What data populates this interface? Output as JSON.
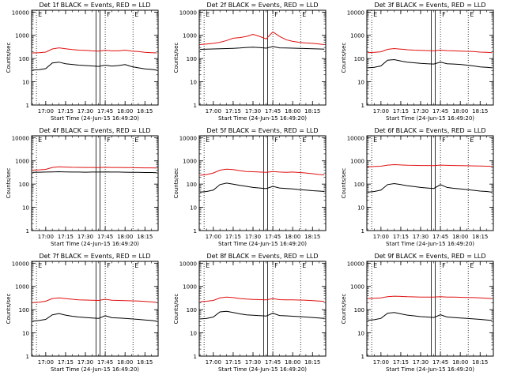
{
  "figure": {
    "ylabel": "Counts/sec",
    "xlabel": "Start Time (24-Jun-15 16:49:20)",
    "x_ticks": [
      "17:00",
      "17:15",
      "17:30",
      "17:45",
      "18:00",
      "18:15"
    ],
    "y_ticks": [
      "1",
      "10",
      "100",
      "1000",
      "10000"
    ],
    "markers": [
      "E",
      "F",
      "E"
    ],
    "colors": {
      "events": "#000000",
      "lld": "#e01010"
    }
  },
  "chart_data": [
    {
      "type": "line",
      "title": "Det 1f BLACK = Events, RED = LLD",
      "xlim": [
        "16:49:20",
        "18:25"
      ],
      "ylim": [
        1,
        12000
      ],
      "yscale": "log",
      "series": [
        {
          "name": "Events",
          "x": [
            "16:50",
            "16:55",
            "17:00",
            "17:05",
            "17:10",
            "17:15",
            "17:20",
            "17:25",
            "17:30",
            "17:35",
            "17:40",
            "17:45",
            "17:50",
            "17:55",
            "18:00",
            "18:05",
            "18:10",
            "18:15",
            "18:20",
            "18:24"
          ],
          "values": [
            32,
            33,
            37,
            65,
            70,
            60,
            56,
            52,
            50,
            48,
            46,
            52,
            47,
            50,
            55,
            45,
            40,
            36,
            34,
            32
          ]
        },
        {
          "name": "LLD",
          "x": [
            "16:50",
            "16:55",
            "17:00",
            "17:05",
            "17:10",
            "17:15",
            "17:20",
            "17:25",
            "17:30",
            "17:35",
            "17:40",
            "17:45",
            "17:50",
            "17:55",
            "18:00",
            "18:05",
            "18:10",
            "18:15",
            "18:20",
            "18:24"
          ],
          "values": [
            175,
            180,
            190,
            260,
            290,
            265,
            245,
            230,
            225,
            215,
            210,
            225,
            215,
            215,
            230,
            210,
            200,
            185,
            180,
            175
          ]
        }
      ]
    },
    {
      "type": "line",
      "title": "Det 2f BLACK = Events, RED = LLD",
      "xlim": [
        "16:49:20",
        "18:25"
      ],
      "ylim": [
        1,
        12000
      ],
      "yscale": "log",
      "series": [
        {
          "name": "Events",
          "x": [
            "16:50",
            "16:55",
            "17:00",
            "17:05",
            "17:10",
            "17:15",
            "17:20",
            "17:25",
            "17:30",
            "17:35",
            "17:40",
            "17:45",
            "17:50",
            "17:55",
            "18:00",
            "18:05",
            "18:10",
            "18:15",
            "18:20",
            "18:24"
          ],
          "values": [
            250,
            255,
            260,
            265,
            270,
            275,
            285,
            300,
            310,
            295,
            280,
            330,
            290,
            285,
            280,
            275,
            270,
            265,
            260,
            255
          ]
        },
        {
          "name": "LLD",
          "x": [
            "16:50",
            "16:55",
            "17:00",
            "17:05",
            "17:10",
            "17:15",
            "17:20",
            "17:25",
            "17:30",
            "17:35",
            "17:40",
            "17:45",
            "17:50",
            "17:55",
            "18:00",
            "18:05",
            "18:10",
            "18:15",
            "18:20",
            "18:24"
          ],
          "values": [
            400,
            420,
            450,
            500,
            600,
            750,
            800,
            900,
            1100,
            900,
            700,
            1400,
            900,
            650,
            550,
            500,
            470,
            450,
            420,
            400
          ]
        }
      ]
    },
    {
      "type": "line",
      "title": "Det 3f BLACK = Events, RED = LLD",
      "xlim": [
        "16:49:20",
        "18:25"
      ],
      "ylim": [
        1,
        12000
      ],
      "yscale": "log",
      "series": [
        {
          "name": "Events",
          "x": [
            "16:50",
            "16:55",
            "17:00",
            "17:05",
            "17:10",
            "17:15",
            "17:20",
            "17:25",
            "17:30",
            "17:35",
            "17:40",
            "17:45",
            "17:50",
            "17:55",
            "18:00",
            "18:05",
            "18:10",
            "18:15",
            "18:20",
            "18:24"
          ],
          "values": [
            40,
            42,
            48,
            85,
            90,
            78,
            70,
            66,
            62,
            60,
            58,
            70,
            60,
            58,
            56,
            52,
            48,
            44,
            42,
            40
          ]
        },
        {
          "name": "LLD",
          "x": [
            "16:50",
            "16:55",
            "17:00",
            "17:05",
            "17:10",
            "17:15",
            "17:20",
            "17:25",
            "17:30",
            "17:35",
            "17:40",
            "17:45",
            "17:50",
            "17:55",
            "18:00",
            "18:05",
            "18:10",
            "18:15",
            "18:20",
            "18:24"
          ],
          "values": [
            180,
            185,
            195,
            250,
            270,
            255,
            240,
            230,
            225,
            220,
            215,
            230,
            220,
            215,
            210,
            205,
            200,
            190,
            185,
            180
          ]
        }
      ]
    },
    {
      "type": "line",
      "title": "Det 4f BLACK = Events, RED = LLD",
      "xlim": [
        "16:49:20",
        "18:25"
      ],
      "ylim": [
        1,
        12000
      ],
      "yscale": "log",
      "series": [
        {
          "name": "Events",
          "x": [
            "16:50",
            "16:55",
            "17:00",
            "17:05",
            "17:10",
            "17:15",
            "17:20",
            "17:25",
            "17:30",
            "17:35",
            "17:40",
            "17:45",
            "17:50",
            "17:55",
            "18:00",
            "18:05",
            "18:10",
            "18:15",
            "18:20",
            "18:24"
          ],
          "values": [
            320,
            325,
            330,
            335,
            340,
            335,
            330,
            330,
            325,
            330,
            330,
            335,
            330,
            330,
            325,
            320,
            320,
            315,
            315,
            310
          ]
        },
        {
          "name": "LLD",
          "x": [
            "16:50",
            "16:55",
            "17:00",
            "17:05",
            "17:10",
            "17:15",
            "17:20",
            "17:25",
            "17:30",
            "17:35",
            "17:40",
            "17:45",
            "17:50",
            "17:55",
            "18:00",
            "18:05",
            "18:10",
            "18:15",
            "18:20",
            "18:24"
          ],
          "values": [
            400,
            410,
            430,
            520,
            560,
            540,
            530,
            525,
            520,
            520,
            515,
            530,
            520,
            520,
            515,
            510,
            505,
            500,
            500,
            495
          ]
        }
      ]
    },
    {
      "type": "line",
      "title": "Det 5f BLACK = Events, RED = LLD",
      "xlim": [
        "16:49:20",
        "18:25"
      ],
      "ylim": [
        1,
        12000
      ],
      "yscale": "log",
      "series": [
        {
          "name": "Events",
          "x": [
            "16:50",
            "16:55",
            "17:00",
            "17:05",
            "17:10",
            "17:15",
            "17:20",
            "17:25",
            "17:30",
            "17:35",
            "17:40",
            "17:45",
            "17:50",
            "17:55",
            "18:00",
            "18:05",
            "18:10",
            "18:15",
            "18:20",
            "18:24"
          ],
          "values": [
            45,
            48,
            55,
            95,
            110,
            100,
            88,
            80,
            72,
            68,
            64,
            80,
            68,
            65,
            62,
            58,
            55,
            52,
            50,
            48
          ]
        },
        {
          "name": "LLD",
          "x": [
            "16:50",
            "16:55",
            "17:00",
            "17:05",
            "17:10",
            "17:15",
            "17:20",
            "17:25",
            "17:30",
            "17:35",
            "17:40",
            "17:45",
            "17:50",
            "17:55",
            "18:00",
            "18:05",
            "18:10",
            "18:15",
            "18:20",
            "18:24"
          ],
          "values": [
            240,
            260,
            300,
            400,
            440,
            420,
            380,
            350,
            340,
            330,
            320,
            350,
            330,
            320,
            330,
            315,
            300,
            280,
            260,
            250
          ]
        }
      ]
    },
    {
      "type": "line",
      "title": "Det 6f BLACK = Events, RED = LLD",
      "xlim": [
        "16:49:20",
        "18:25"
      ],
      "ylim": [
        1,
        12000
      ],
      "yscale": "log",
      "series": [
        {
          "name": "Events",
          "x": [
            "16:50",
            "16:55",
            "17:00",
            "17:05",
            "17:10",
            "17:15",
            "17:20",
            "17:25",
            "17:30",
            "17:35",
            "17:40",
            "17:45",
            "17:50",
            "17:55",
            "18:00",
            "18:05",
            "18:10",
            "18:15",
            "18:20",
            "18:24"
          ],
          "values": [
            45,
            48,
            55,
            95,
            105,
            95,
            85,
            78,
            72,
            68,
            65,
            95,
            72,
            66,
            62,
            58,
            54,
            50,
            48,
            45
          ]
        },
        {
          "name": "LLD",
          "x": [
            "16:50",
            "16:55",
            "17:00",
            "17:05",
            "17:10",
            "17:15",
            "17:20",
            "17:25",
            "17:30",
            "17:35",
            "17:40",
            "17:45",
            "17:50",
            "17:55",
            "18:00",
            "18:05",
            "18:10",
            "18:15",
            "18:20",
            "18:24"
          ],
          "values": [
            560,
            570,
            590,
            660,
            690,
            670,
            650,
            640,
            630,
            630,
            625,
            660,
            640,
            630,
            625,
            620,
            610,
            600,
            590,
            580
          ]
        }
      ]
    },
    {
      "type": "line",
      "title": "Det 7f BLACK = Events, RED = LLD",
      "xlim": [
        "16:49:20",
        "18:25"
      ],
      "ylim": [
        1,
        12000
      ],
      "yscale": "log",
      "series": [
        {
          "name": "Events",
          "x": [
            "16:50",
            "16:55",
            "17:00",
            "17:05",
            "17:10",
            "17:15",
            "17:20",
            "17:25",
            "17:30",
            "17:35",
            "17:40",
            "17:45",
            "17:50",
            "17:55",
            "18:00",
            "18:05",
            "18:10",
            "18:15",
            "18:20",
            "18:24"
          ],
          "values": [
            32,
            34,
            38,
            60,
            68,
            58,
            52,
            48,
            46,
            44,
            42,
            55,
            45,
            44,
            42,
            40,
            38,
            36,
            34,
            32
          ]
        },
        {
          "name": "LLD",
          "x": [
            "16:50",
            "16:55",
            "17:00",
            "17:05",
            "17:10",
            "17:15",
            "17:20",
            "17:25",
            "17:30",
            "17:35",
            "17:40",
            "17:45",
            "17:50",
            "17:55",
            "18:00",
            "18:05",
            "18:10",
            "18:15",
            "18:20",
            "18:24"
          ],
          "values": [
            200,
            210,
            230,
            300,
            320,
            300,
            280,
            265,
            260,
            255,
            250,
            280,
            255,
            250,
            245,
            240,
            235,
            225,
            215,
            205
          ]
        }
      ]
    },
    {
      "type": "line",
      "title": "Det 8f BLACK = Events, RED = LLD",
      "xlim": [
        "16:49:20",
        "18:25"
      ],
      "ylim": [
        1,
        12000
      ],
      "yscale": "log",
      "series": [
        {
          "name": "Events",
          "x": [
            "16:50",
            "16:55",
            "17:00",
            "17:05",
            "17:10",
            "17:15",
            "17:20",
            "17:25",
            "17:30",
            "17:35",
            "17:40",
            "17:45",
            "17:50",
            "17:55",
            "18:00",
            "18:05",
            "18:10",
            "18:15",
            "18:20",
            "18:24"
          ],
          "values": [
            40,
            42,
            48,
            80,
            85,
            75,
            66,
            60,
            57,
            55,
            53,
            70,
            56,
            54,
            52,
            50,
            48,
            46,
            44,
            42
          ]
        },
        {
          "name": "LLD",
          "x": [
            "16:50",
            "16:55",
            "17:00",
            "17:05",
            "17:10",
            "17:15",
            "17:20",
            "17:25",
            "17:30",
            "17:35",
            "17:40",
            "17:45",
            "17:50",
            "17:55",
            "18:00",
            "18:05",
            "18:10",
            "18:15",
            "18:20",
            "18:24"
          ],
          "values": [
            220,
            230,
            250,
            320,
            350,
            330,
            300,
            285,
            275,
            270,
            265,
            300,
            270,
            265,
            265,
            260,
            255,
            245,
            235,
            225
          ]
        }
      ]
    },
    {
      "type": "line",
      "title": "Det 9f BLACK = Events, RED = LLD",
      "xlim": [
        "16:49:20",
        "18:25"
      ],
      "ylim": [
        1,
        12000
      ],
      "yscale": "log",
      "series": [
        {
          "name": "Events",
          "x": [
            "16:50",
            "16:55",
            "17:00",
            "17:05",
            "17:10",
            "17:15",
            "17:20",
            "17:25",
            "17:30",
            "17:35",
            "17:40",
            "17:45",
            "17:50",
            "17:55",
            "18:00",
            "18:05",
            "18:10",
            "18:15",
            "18:20",
            "18:24"
          ],
          "values": [
            35,
            37,
            42,
            70,
            75,
            66,
            58,
            54,
            50,
            48,
            46,
            60,
            48,
            46,
            44,
            42,
            40,
            38,
            36,
            34
          ]
        },
        {
          "name": "LLD",
          "x": [
            "16:50",
            "16:55",
            "17:00",
            "17:05",
            "17:10",
            "17:15",
            "17:20",
            "17:25",
            "17:30",
            "17:35",
            "17:40",
            "17:45",
            "17:50",
            "17:55",
            "18:00",
            "18:05",
            "18:10",
            "18:15",
            "18:20",
            "18:24"
          ],
          "values": [
            300,
            310,
            320,
            360,
            380,
            370,
            360,
            355,
            350,
            350,
            345,
            360,
            350,
            345,
            340,
            335,
            330,
            320,
            310,
            300
          ]
        }
      ]
    }
  ]
}
